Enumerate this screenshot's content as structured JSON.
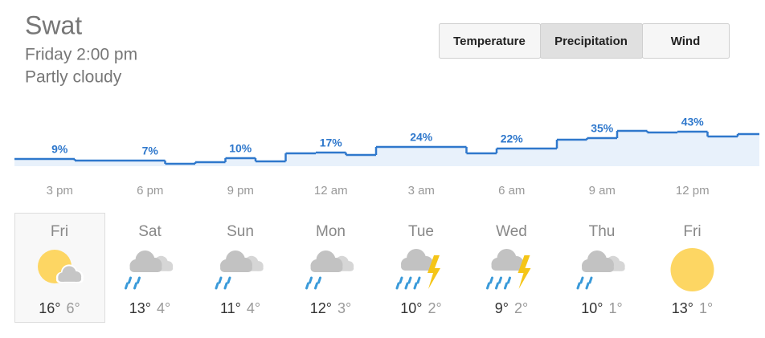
{
  "header": {
    "location": "Swat",
    "time": "Friday 2:00 pm",
    "condition": "Partly cloudy"
  },
  "tabs": {
    "items": [
      "Temperature",
      "Precipitation",
      "Wind"
    ],
    "selected": 1
  },
  "chart_data": {
    "type": "step",
    "categories": [
      null,
      "3 pm",
      null,
      null,
      "6 pm",
      null,
      null,
      "9 pm",
      null,
      null,
      "12 am",
      null,
      null,
      "3 am",
      null,
      null,
      "6 am",
      null,
      null,
      "9 am",
      null,
      null,
      "12 pm",
      null,
      null
    ],
    "values": [
      9,
      9,
      7,
      7,
      7,
      3,
      5,
      10,
      6,
      16,
      17,
      14,
      24,
      24,
      24,
      16,
      22,
      22,
      33,
      35,
      44,
      42,
      43,
      37,
      40
    ],
    "value_labels": [
      null,
      "9%",
      null,
      null,
      "7%",
      null,
      null,
      "10%",
      null,
      null,
      "17%",
      null,
      null,
      "24%",
      null,
      null,
      "22%",
      null,
      null,
      "35%",
      null,
      null,
      "43%",
      null,
      null
    ],
    "ylim": [
      0,
      100
    ],
    "color": "#2f78cc",
    "area_color": "#e8f1fb"
  },
  "days": [
    {
      "day": "Fri",
      "icon": "partly-cloudy",
      "high": "16°",
      "low": "6°"
    },
    {
      "day": "Sat",
      "icon": "rain",
      "high": "13°",
      "low": "4°"
    },
    {
      "day": "Sun",
      "icon": "rain",
      "high": "11°",
      "low": "4°"
    },
    {
      "day": "Mon",
      "icon": "rain",
      "high": "12°",
      "low": "3°"
    },
    {
      "day": "Tue",
      "icon": "thunderstorm",
      "high": "10°",
      "low": "2°"
    },
    {
      "day": "Wed",
      "icon": "thunderstorm",
      "high": "9°",
      "low": "2°"
    },
    {
      "day": "Thu",
      "icon": "rain",
      "high": "10°",
      "low": "1°"
    },
    {
      "day": "Fri",
      "icon": "sunny",
      "high": "13°",
      "low": "1°"
    }
  ],
  "selected_day": 0
}
